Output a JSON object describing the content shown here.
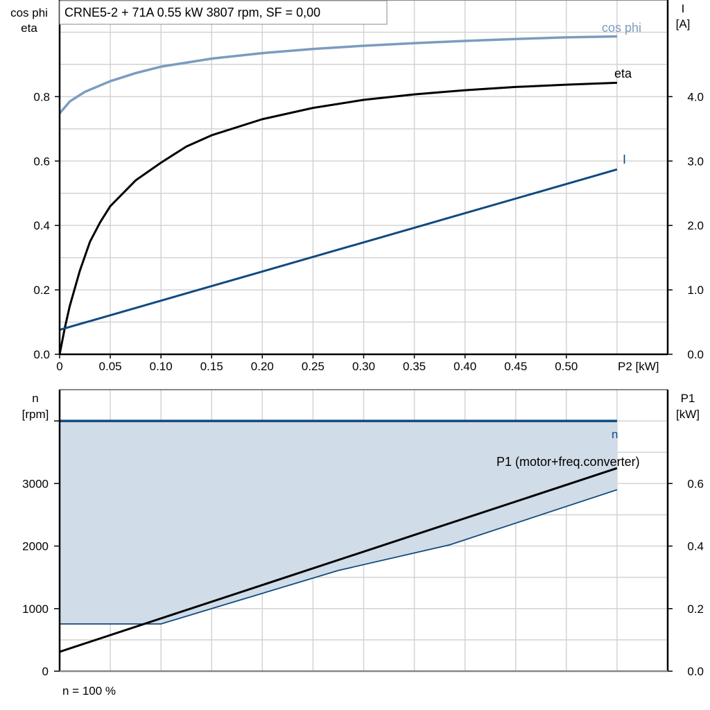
{
  "chart_data": [
    {
      "type": "line",
      "title": "CRNE5-2 + 71A   0.55 kW   3807 rpm, SF = 0,00",
      "xlabel": "P2 [kW]",
      "ylabel_left": [
        "cos phi",
        "eta"
      ],
      "ylabel_right": [
        "I",
        "[A]"
      ],
      "xlim": [
        0,
        0.6
      ],
      "ylim_left": [
        0,
        1.1
      ],
      "ylim_right": [
        0,
        5.5
      ],
      "x_ticks": [
        "0",
        "0.05",
        "0.10",
        "0.15",
        "0.20",
        "0.25",
        "0.30",
        "0.35",
        "0.40",
        "0.45",
        "0.50"
      ],
      "y_ticks_left": [
        "0.0",
        "0.2",
        "0.4",
        "0.6",
        "0.8"
      ],
      "y_ticks_right": [
        "0.0",
        "1.0",
        "2.0",
        "3.0",
        "4.0"
      ],
      "grid": true,
      "series": [
        {
          "name": "cos phi",
          "axis": "left",
          "color": "#7a9cbf",
          "x": [
            0,
            0.01,
            0.025,
            0.05,
            0.075,
            0.1,
            0.15,
            0.2,
            0.25,
            0.3,
            0.35,
            0.4,
            0.45,
            0.5,
            0.55
          ],
          "y": [
            0.748,
            0.785,
            0.815,
            0.848,
            0.873,
            0.893,
            0.918,
            0.935,
            0.948,
            0.958,
            0.966,
            0.973,
            0.979,
            0.984,
            0.987
          ]
        },
        {
          "name": "eta",
          "axis": "left",
          "color": "#000000",
          "x": [
            0,
            0.005,
            0.01,
            0.02,
            0.03,
            0.04,
            0.05,
            0.075,
            0.1,
            0.125,
            0.15,
            0.2,
            0.25,
            0.3,
            0.35,
            0.4,
            0.45,
            0.5,
            0.55
          ],
          "y": [
            0,
            0.08,
            0.15,
            0.26,
            0.35,
            0.41,
            0.46,
            0.54,
            0.595,
            0.645,
            0.68,
            0.73,
            0.765,
            0.79,
            0.807,
            0.82,
            0.83,
            0.837,
            0.843
          ]
        },
        {
          "name": "I",
          "axis": "right",
          "color": "#0f4a80",
          "x": [
            0,
            0.55
          ],
          "y": [
            0.38,
            2.87
          ]
        }
      ]
    },
    {
      "type": "area",
      "footer": "n = 100 %",
      "ylabel_left": [
        "n",
        "[rpm]"
      ],
      "ylabel_right": [
        "P1",
        "[kW]"
      ],
      "xlim": [
        0,
        0.6
      ],
      "ylim_left": [
        0,
        4500
      ],
      "ylim_right": [
        0,
        0.9
      ],
      "y_ticks_left": [
        "0",
        "1000",
        "2000",
        "3000"
      ],
      "y_ticks_right": [
        "0.0",
        "0.2",
        "0.4",
        "0.6"
      ],
      "grid": true,
      "fill_color": "#d0dce8",
      "series": [
        {
          "name": "n",
          "axis": "left",
          "color": "#0f4a80",
          "x": [
            0,
            0.55
          ],
          "y": [
            4000,
            4000
          ]
        },
        {
          "axis": "left",
          "color": "#0f4a80",
          "x": [
            0,
            0.1,
            0.15,
            0.275,
            0.385,
            0.55
          ],
          "y": [
            755,
            755,
            1000,
            1610,
            2020,
            2900
          ]
        },
        {
          "name": "P1 (motor+freq.converter)",
          "axis": "right",
          "color": "#000000",
          "x": [
            0,
            0.55
          ],
          "y": [
            0.062,
            0.649
          ]
        }
      ]
    }
  ]
}
